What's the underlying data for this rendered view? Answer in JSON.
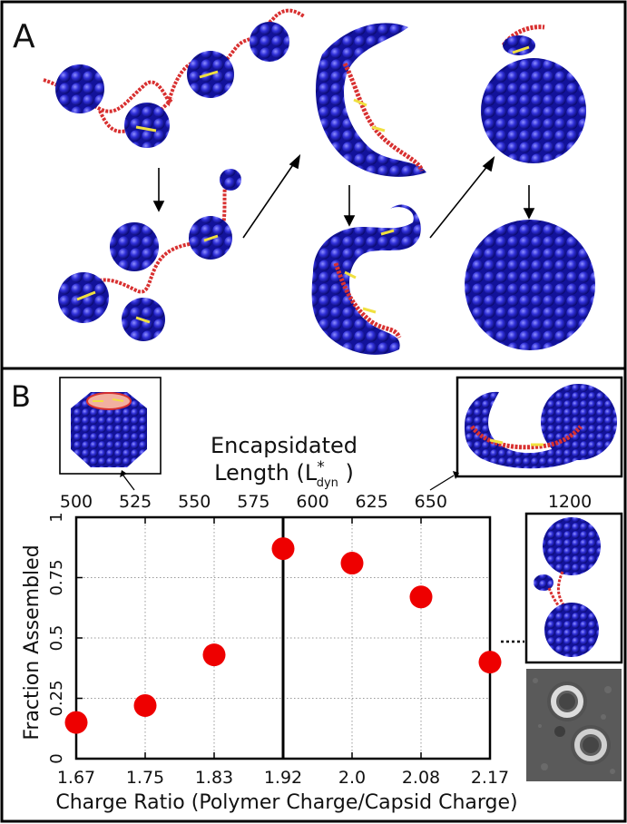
{
  "panels": {
    "a_label": "A",
    "b_label": "B"
  },
  "top_axis": {
    "title_line1": "Encapsidated",
    "title_line2_prefix": "Length (L",
    "title_sup": "*",
    "title_sub": "dyn",
    "title_suffix": " )",
    "ticks": [
      "500",
      "525",
      "550",
      "575",
      "600",
      "625",
      "650",
      "1200"
    ]
  },
  "colors": {
    "marker": "#ee0000",
    "capsid": "#2a2ad0",
    "polymer": "#d83030",
    "polymer_highlight": "#f0e040",
    "grid": "#999999"
  },
  "chart_data": {
    "type": "scatter",
    "title": "",
    "xlabel": "Charge Ratio (Polymer Charge/Capsid Charge)",
    "ylabel": "Fraction Assembled",
    "x_tick_labels": [
      "1.67",
      "1.75",
      "1.83",
      "1.92",
      "2.0",
      "2.08",
      "2.17"
    ],
    "y_ticks": [
      0,
      0.25,
      0.5,
      0.75,
      1
    ],
    "y_tick_labels": [
      "0",
      "0.25",
      "0.5",
      "0.75",
      "1"
    ],
    "ylim": [
      0,
      1
    ],
    "grid": true,
    "vertical_line_at": "1.92",
    "series": [
      {
        "name": "Fraction Assembled",
        "x": [
          "1.67",
          "1.75",
          "1.83",
          "1.92",
          "2.0",
          "2.08",
          "2.17"
        ],
        "values": [
          0.15,
          0.22,
          0.43,
          0.87,
          0.81,
          0.67,
          0.4
        ]
      }
    ]
  }
}
